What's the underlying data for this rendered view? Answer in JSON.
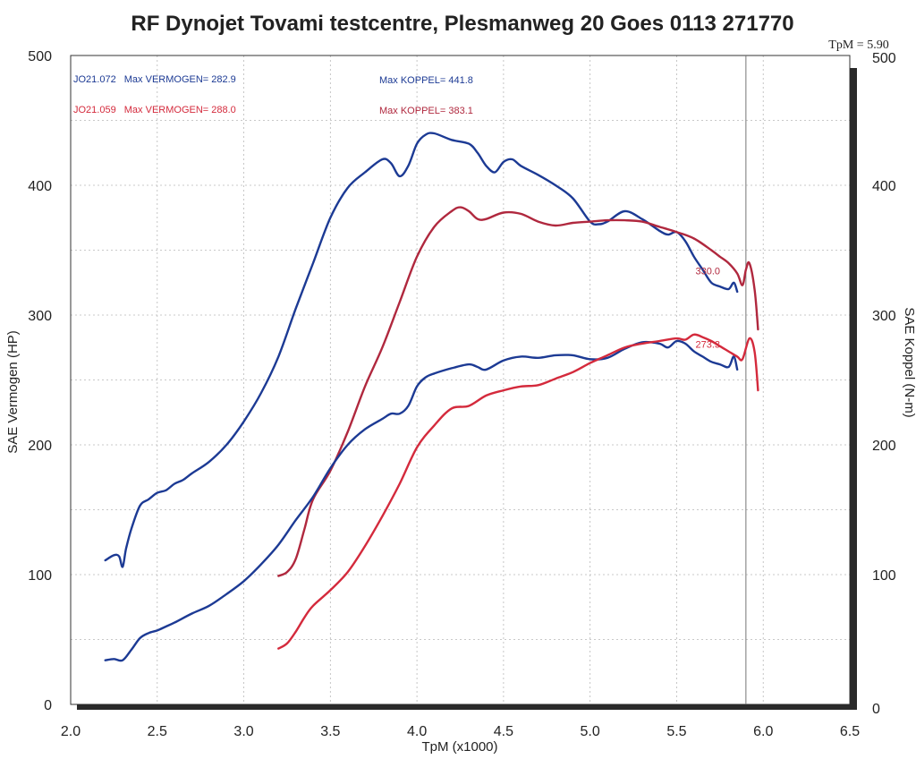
{
  "chart_data": {
    "type": "line",
    "title": "RF Dynojet Tovami testcentre, Plesmanweg 20 Goes 0113 271770",
    "xlabel": "TpM (x1000)",
    "ylabel_left": "SAE Vermogen (HP)",
    "ylabel_right": "SAE Koppel (N-m)",
    "xlim": [
      2.0,
      6.5
    ],
    "ylim_left": [
      0,
      500
    ],
    "ylim_right": [
      0,
      500
    ],
    "x_ticks": [
      "2.0",
      "2.5",
      "3.0",
      "3.5",
      "4.0",
      "4.5",
      "5.0",
      "5.5",
      "6.0",
      "6.5"
    ],
    "y_ticks_left": [
      "0",
      "100",
      "200",
      "300",
      "400",
      "500"
    ],
    "y_ticks_right": [
      "0",
      "100",
      "200",
      "300",
      "400",
      "500"
    ],
    "grid": true,
    "tpm_marker": {
      "label": "TpM = 5.90",
      "x": 5.9
    },
    "legend": [
      {
        "run": "JO21.072",
        "power_text": "Max VERMOGEN= 282.9",
        "torque_text": "Max KOPPEL= 441.8",
        "color": "#1c3a94"
      },
      {
        "run": "JO21.059",
        "power_text": "Max VERMOGEN= 288.0",
        "torque_text": "Max KOPPEL= 383.1",
        "color": "#d42a3c"
      }
    ],
    "annotations": [
      {
        "text": "330.0",
        "x": 5.68,
        "y": 330,
        "color": "#b0283e"
      },
      {
        "text": "273.3",
        "x": 5.68,
        "y": 273.3,
        "color": "#d42a3c"
      }
    ],
    "series": [
      {
        "name": "JO21.072 Max KOPPEL= 441.8",
        "kind": "torque",
        "color": "#1c3a94",
        "x": [
          2.2,
          2.25,
          2.28,
          2.3,
          2.32,
          2.35,
          2.4,
          2.45,
          2.5,
          2.55,
          2.6,
          2.65,
          2.7,
          2.8,
          2.9,
          3.0,
          3.1,
          3.2,
          3.3,
          3.4,
          3.5,
          3.6,
          3.7,
          3.8,
          3.85,
          3.9,
          3.95,
          4.0,
          4.05,
          4.1,
          4.2,
          4.3,
          4.35,
          4.4,
          4.45,
          4.5,
          4.55,
          4.6,
          4.7,
          4.8,
          4.9,
          5.0,
          5.05,
          5.1,
          5.2,
          5.3,
          5.4,
          5.45,
          5.5,
          5.55,
          5.6,
          5.65,
          5.7,
          5.75,
          5.8,
          5.83,
          5.85
        ],
        "y": [
          111,
          115,
          114,
          106,
          120,
          135,
          153,
          158,
          163,
          165,
          170,
          173,
          178,
          187,
          200,
          218,
          240,
          268,
          305,
          340,
          375,
          398,
          410,
          420,
          417,
          407,
          415,
          432,
          439,
          440,
          435,
          432,
          425,
          415,
          410,
          418,
          420,
          415,
          408,
          400,
          390,
          372,
          370,
          372,
          380,
          374,
          365,
          362,
          364,
          357,
          345,
          335,
          325,
          322,
          320,
          325,
          318
        ]
      },
      {
        "name": "JO21.059 Max KOPPEL= 383.1",
        "kind": "torque",
        "color": "#b0283e",
        "x": [
          3.2,
          3.25,
          3.3,
          3.35,
          3.4,
          3.5,
          3.6,
          3.7,
          3.8,
          3.9,
          4.0,
          4.1,
          4.2,
          4.25,
          4.3,
          4.35,
          4.4,
          4.5,
          4.6,
          4.7,
          4.8,
          4.9,
          5.0,
          5.1,
          5.2,
          5.3,
          5.4,
          5.5,
          5.6,
          5.7,
          5.75,
          5.8,
          5.85,
          5.88,
          5.9,
          5.92,
          5.95,
          5.97
        ],
        "y": [
          99,
          102,
          112,
          135,
          158,
          180,
          210,
          245,
          275,
          310,
          345,
          368,
          380,
          383,
          380,
          374,
          374,
          379,
          378,
          372,
          369,
          371,
          372,
          373,
          373,
          372,
          368,
          364,
          359,
          350,
          345,
          340,
          332,
          323,
          335,
          340,
          320,
          289
        ]
      },
      {
        "name": "JO21.072 Max VERMOGEN= 282.9",
        "kind": "power",
        "color": "#1c3a94",
        "x": [
          2.2,
          2.25,
          2.3,
          2.35,
          2.4,
          2.45,
          2.5,
          2.55,
          2.6,
          2.7,
          2.8,
          2.9,
          3.0,
          3.1,
          3.2,
          3.3,
          3.4,
          3.5,
          3.6,
          3.7,
          3.8,
          3.85,
          3.9,
          3.95,
          4.0,
          4.05,
          4.1,
          4.2,
          4.3,
          4.35,
          4.4,
          4.5,
          4.6,
          4.7,
          4.8,
          4.9,
          5.0,
          5.1,
          5.2,
          5.3,
          5.4,
          5.45,
          5.5,
          5.55,
          5.6,
          5.65,
          5.7,
          5.75,
          5.8,
          5.83,
          5.85
        ],
        "y": [
          34,
          35,
          34,
          42,
          51,
          55,
          57,
          60,
          63,
          70,
          76,
          85,
          95,
          108,
          123,
          142,
          160,
          182,
          200,
          212,
          220,
          224,
          224,
          230,
          245,
          252,
          255,
          259,
          262,
          260,
          258,
          265,
          268,
          267,
          269,
          269,
          266,
          267,
          274,
          279,
          278,
          275,
          280,
          278,
          272,
          268,
          264,
          262,
          260,
          268,
          258
        ]
      },
      {
        "name": "JO21.059 Max VERMOGEN= 288.0",
        "kind": "power",
        "color": "#d42a3c",
        "x": [
          3.2,
          3.25,
          3.3,
          3.35,
          3.4,
          3.5,
          3.6,
          3.7,
          3.8,
          3.9,
          4.0,
          4.1,
          4.2,
          4.3,
          4.4,
          4.5,
          4.6,
          4.7,
          4.8,
          4.9,
          5.0,
          5.1,
          5.2,
          5.3,
          5.4,
          5.5,
          5.55,
          5.6,
          5.65,
          5.7,
          5.75,
          5.8,
          5.85,
          5.88,
          5.92,
          5.95,
          5.97
        ],
        "y": [
          43,
          47,
          56,
          67,
          76,
          88,
          102,
          122,
          145,
          170,
          198,
          215,
          228,
          230,
          238,
          242,
          245,
          246,
          251,
          256,
          263,
          269,
          275,
          278,
          280,
          282,
          281,
          285,
          283,
          280,
          276,
          272,
          268,
          266,
          282,
          272,
          242
        ]
      }
    ]
  }
}
